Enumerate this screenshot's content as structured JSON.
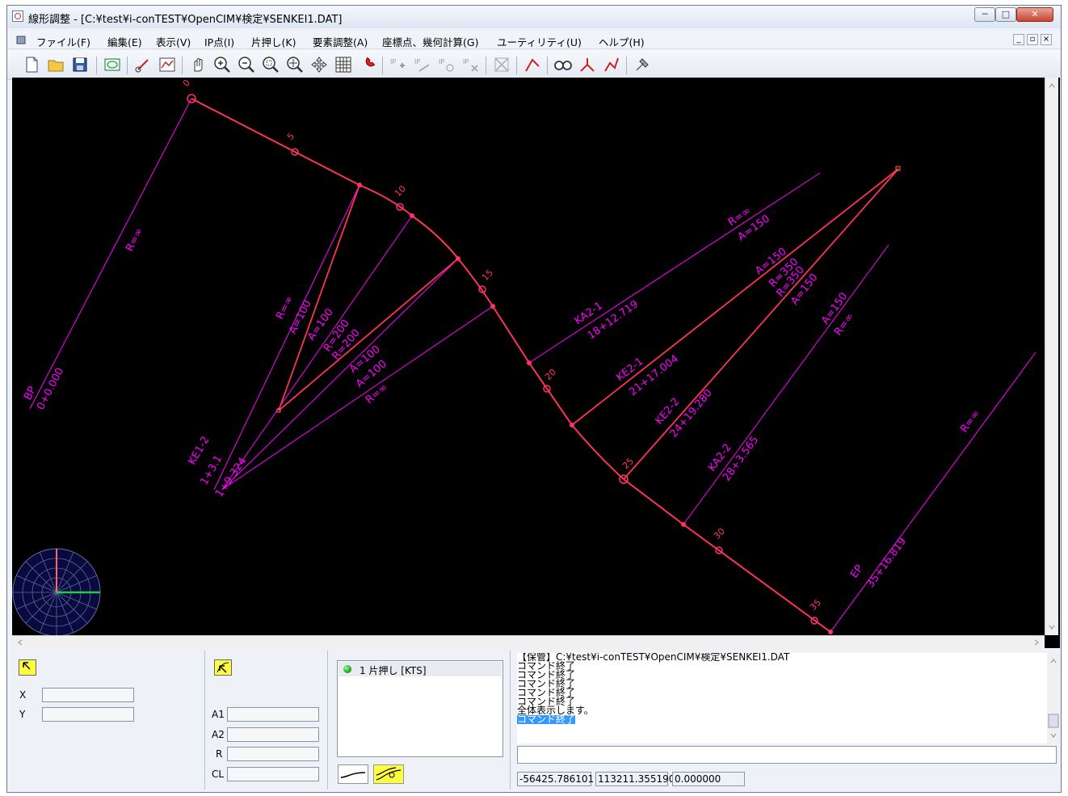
{
  "window": {
    "title": "線形調整 - [C:¥test¥i-conTEST¥OpenCIM¥検定¥SENKEI1.DAT]",
    "minimize_label": "─",
    "maximize_label": "□",
    "close_label": "✕"
  },
  "menu": [
    "ファイル(F)",
    "編集(E)",
    "表示(V)",
    "IP点(I)",
    "片押し(K)",
    "要素調整(A)",
    "座標点、幾何計算(G)",
    "ユーティリティ(U)",
    "ヘルプ(H)"
  ],
  "mdi_buttons": [
    "_",
    "▫",
    "×"
  ],
  "toolbar_icons": [
    "new-file-icon",
    "open-folder-icon",
    "save-icon",
    "layer-icon",
    "vector-icon",
    "profile-icon",
    "pan-hand-icon",
    "zoom-in-icon",
    "zoom-out-icon",
    "zoom-window-icon",
    "zoom-all-icon",
    "move-icon",
    "grid-icon",
    "magnet-icon",
    "ip-add-icon",
    "ip-move-icon",
    "ip-insert-icon",
    "ip-delete-icon",
    "element-disabled-icon",
    "element-adjust-icon",
    "binocular-icon",
    "element-move-icon",
    "element-edit-icon",
    "tools-icon"
  ],
  "canvas": {
    "background": "#000000",
    "alignment_color": "#ff3355",
    "annotation_color": "#ff00ff",
    "station_labels": [
      "0",
      "5",
      "10",
      "15",
      "20",
      "25",
      "30",
      "35"
    ],
    "labels": {
      "bp": "BP",
      "bp_station": "0+0.000",
      "r_inf_1": "R=∞",
      "r_inf_2": "R=∞",
      "a100_1": "A=100",
      "a100_2": "A=100",
      "r200_1": "R=200",
      "r200_2": "R=200",
      "a100_3": "A=100",
      "a100_4": "A=100",
      "r_inf_3": "R=∞",
      "ke1_cluster": "KE1-2",
      "cluster_2": "1+3.1",
      "cluster_3": "1+9.324",
      "ka21": "KA2-1",
      "ka21_station": "18+12.719",
      "r_inf_4": "R=∞",
      "a150_1": "A=150",
      "a150_2": "A=150",
      "r350_1": "R=350",
      "r350_2": "R=350",
      "a150_3": "A=150",
      "ke21": "KE2-1",
      "ke21_station": "21+17.004",
      "ke22": "KE2-2",
      "ke22_station": "24+19.280",
      "ka22": "KA2-2",
      "ka22_station": "28+3.565",
      "a150_4": "A=150",
      "r_inf_5": "R=∞",
      "r_inf_6": "R=∞",
      "ep": "EP",
      "ep_station": "35+16.819"
    }
  },
  "coord_panel": {
    "x_label": "X",
    "y_label": "Y",
    "x_value": "",
    "y_value": ""
  },
  "element_panel": {
    "a1_label": "A1",
    "a2_label": "A2",
    "r_label": "R",
    "cl_label": "CL",
    "a1_value": "",
    "a2_value": "",
    "r_value": "",
    "cl_value": ""
  },
  "alignment_list": {
    "items": [
      {
        "status_color": "#22aa22",
        "label": "1 片押し [KTS]"
      }
    ]
  },
  "log": {
    "lines": [
      "【保管】C:¥test¥i-conTEST¥OpenCIM¥検定¥SENKEI1.DAT",
      "コマンド終了",
      "コマンド終了",
      "コマンド終了",
      "コマンド終了",
      "コマンド終了",
      "全体表示します。"
    ],
    "selected_line": "コマンド終了",
    "command_input": ""
  },
  "status": {
    "x": "-56425.786101",
    "y": "113211.355190",
    "z": "0.000000"
  }
}
